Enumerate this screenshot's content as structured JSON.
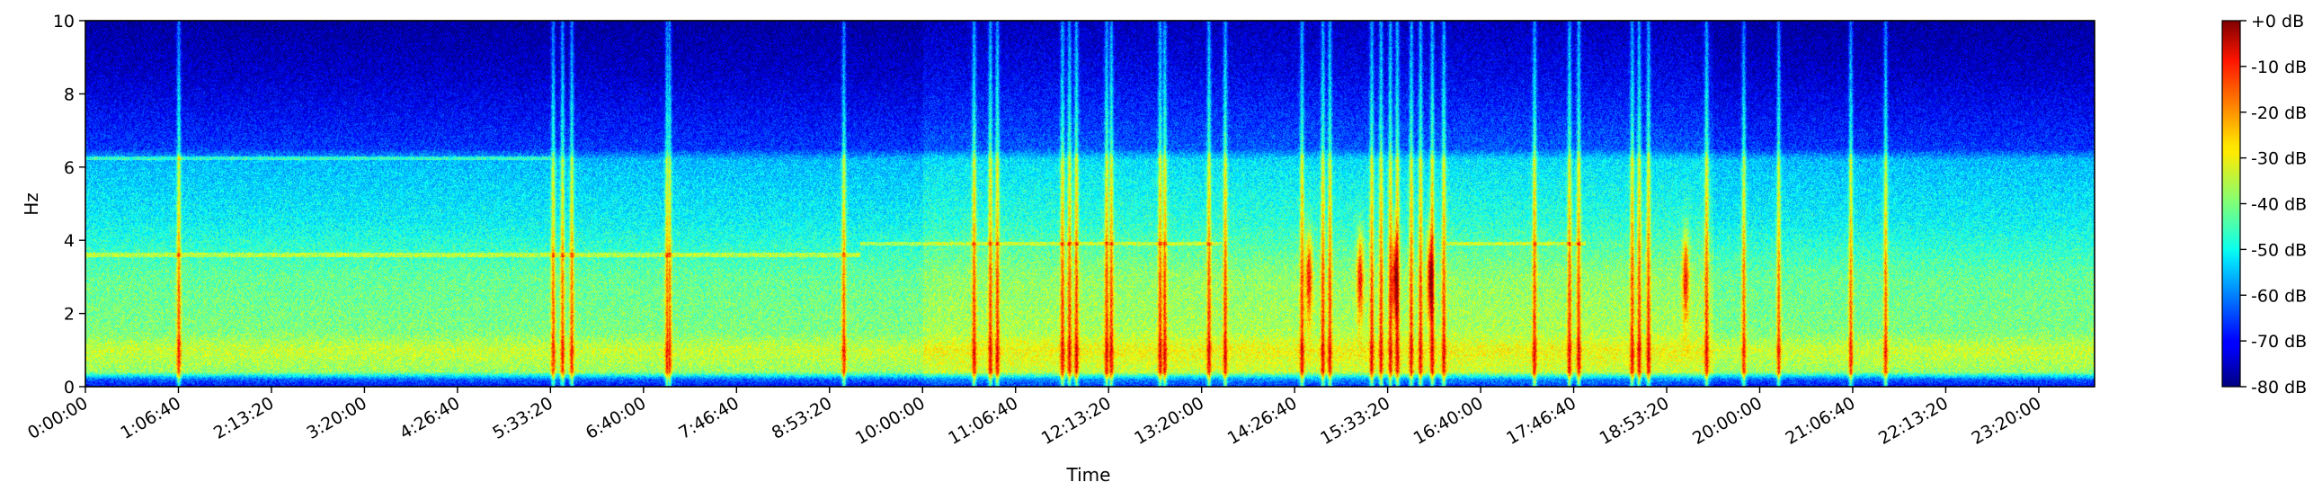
{
  "chart_data": {
    "type": "heatmap",
    "title": "",
    "xlabel": "Time",
    "ylabel": "Hz",
    "x_ticks": [
      "0:00:00",
      "1:06:40",
      "2:13:20",
      "3:20:00",
      "4:26:40",
      "5:33:20",
      "6:40:00",
      "7:46:40",
      "8:53:20",
      "10:00:00",
      "11:06:40",
      "12:13:20",
      "13:20:00",
      "14:26:40",
      "15:33:20",
      "16:40:00",
      "17:46:40",
      "18:53:20",
      "20:00:00",
      "21:06:40",
      "22:13:20",
      "23:20:00"
    ],
    "x_tick_seconds": [
      0,
      4000,
      8000,
      12000,
      16000,
      20000,
      24000,
      28000,
      32000,
      36000,
      40000,
      44000,
      48000,
      52000,
      56000,
      60000,
      64000,
      68000,
      72000,
      76000,
      80000,
      84000
    ],
    "xlim_seconds": [
      0,
      86400
    ],
    "y_ticks": [
      "0",
      "2",
      "4",
      "6",
      "8",
      "10"
    ],
    "ylim": [
      0,
      10
    ],
    "colorbar": {
      "colormap": "jet",
      "range_db": [
        -80,
        0
      ],
      "ticks": [
        "+0 dB",
        "-10 dB",
        "-20 dB",
        "-30 dB",
        "-40 dB",
        "-50 dB",
        "-60 dB",
        "-70 dB",
        "-80 dB"
      ]
    },
    "features": {
      "description_only": false,
      "background_profile_db_by_hz": [
        {
          "hz": 0.0,
          "db": -70
        },
        {
          "hz": 0.2,
          "db": -62
        },
        {
          "hz": 0.4,
          "db": -38
        },
        {
          "hz": 1.0,
          "db": -34
        },
        {
          "hz": 1.5,
          "db": -40
        },
        {
          "hz": 3.0,
          "db": -42
        },
        {
          "hz": 4.5,
          "db": -50
        },
        {
          "hz": 6.2,
          "db": -55
        },
        {
          "hz": 6.5,
          "db": -66
        },
        {
          "hz": 8.5,
          "db": -74
        },
        {
          "hz": 10.0,
          "db": -78
        }
      ],
      "vertical_events_seconds": [
        4000,
        20100,
        20500,
        20900,
        25000,
        25100,
        32600,
        38200,
        38900,
        39200,
        42000,
        42300,
        42600,
        43900,
        44100,
        46200,
        46400,
        48300,
        49000,
        52300,
        53200,
        53500,
        55300,
        55700,
        56100,
        56400,
        57000,
        57400,
        57900,
        58400,
        62300,
        63800,
        64200,
        66500,
        66800,
        67200,
        69700,
        71300,
        72800,
        75900,
        77400
      ],
      "strong_events_seconds": [
        52600,
        54800,
        56300,
        57800,
        68800
      ],
      "horizontal_lines": [
        {
          "hz": 6.25,
          "from_s": 0,
          "to_s": 20000
        },
        {
          "hz": 3.6,
          "from_s": 0,
          "to_s": 33300
        },
        {
          "hz": 3.9,
          "from_s": 33300,
          "to_s": 48800
        },
        {
          "hz": 3.9,
          "from_s": 58500,
          "to_s": 64500
        }
      ]
    }
  }
}
